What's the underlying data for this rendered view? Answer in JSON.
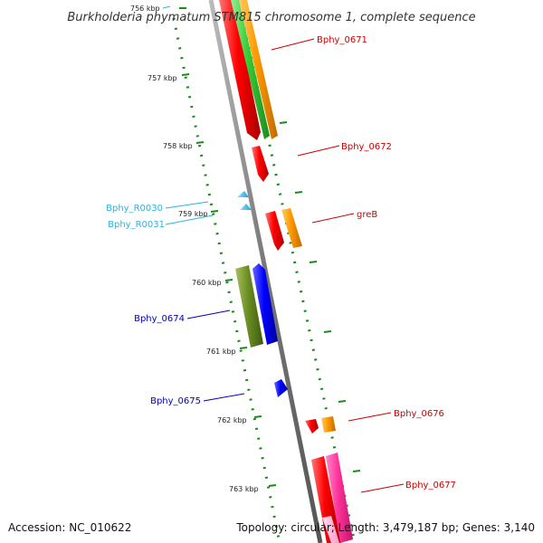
{
  "title": "Burkholderia phymatum STM815 chromosome 1, complete sequence",
  "footer": {
    "accession": "Accession: NC_010622",
    "summary": "Topology: circular; Length: 3,479,187 bp; Genes: 3,140"
  },
  "ticks": [
    {
      "label": "756 kbp"
    },
    {
      "label": "757 kbp"
    },
    {
      "label": "758 kbp"
    },
    {
      "label": "759 kbp"
    },
    {
      "label": "760 kbp"
    },
    {
      "label": "761 kbp"
    },
    {
      "label": "762 kbp"
    },
    {
      "label": "763 kbp"
    }
  ],
  "genes": [
    {
      "name": "Bphy_0671",
      "color": "#cc0000"
    },
    {
      "name": "Bphy_0672",
      "color": "#cc0000"
    },
    {
      "name": "greB",
      "color": "#cc0000"
    },
    {
      "name": "Bphy_R0030",
      "color": "#2ab4e0"
    },
    {
      "name": "Bphy_R0031",
      "color": "#2ab4e0"
    },
    {
      "name": "Bphy_0674",
      "color": "#0000bb"
    },
    {
      "name": "Bphy_0675",
      "color": "#0000bb"
    },
    {
      "name": "Bphy_0676",
      "color": "#cc0000"
    },
    {
      "name": "Bphy_0677",
      "color": "#cc0000"
    }
  ],
  "colors": {
    "backbone": "#888888",
    "tick_marks": "#1a8a1a",
    "red": "#ff0000",
    "orange": "#ff9900",
    "green": "#33cc33",
    "olive": "#6b8e23",
    "blue": "#0000ff",
    "cyan": "#33bbee",
    "pink": "#ff3399",
    "light_pink": "#ffb3d9"
  }
}
